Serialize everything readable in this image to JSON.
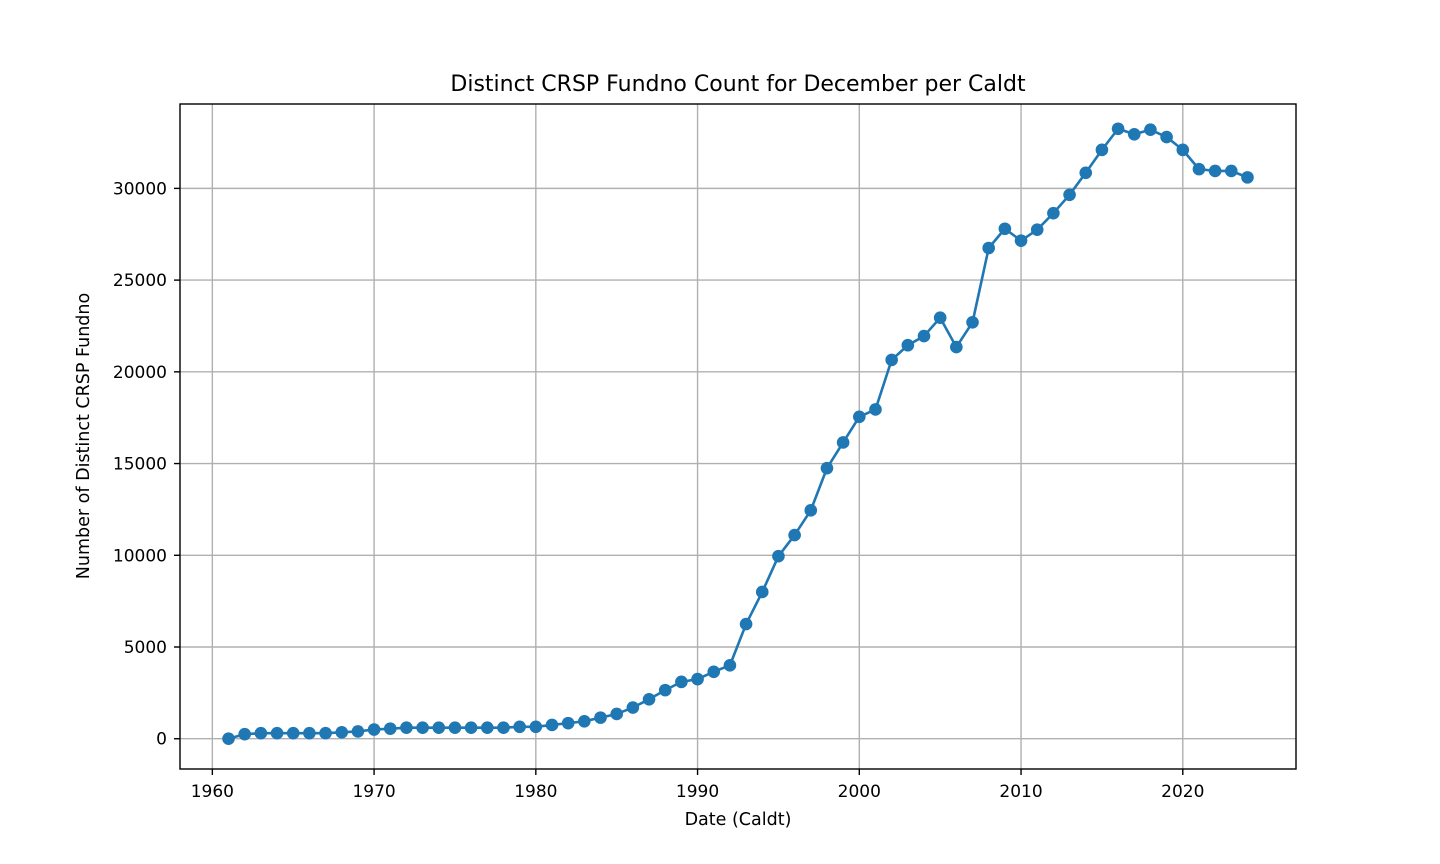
{
  "chart_data": {
    "type": "line",
    "title": "Distinct CRSP Fundno Count for December per Caldt",
    "xlabel": "Date (Caldt)",
    "ylabel": "Number of Distinct CRSP Fundno",
    "xlim": [
      1958,
      2027
    ],
    "ylim": [
      -1650,
      34600
    ],
    "x_ticks": [
      1960,
      1970,
      1980,
      1990,
      2000,
      2010,
      2020
    ],
    "y_ticks": [
      0,
      5000,
      10000,
      15000,
      20000,
      25000,
      30000
    ],
    "grid": true,
    "markers": "circle",
    "series_color": "#1f77b4",
    "series": [
      {
        "x": [
          1961,
          1962,
          1963,
          1964,
          1965,
          1966,
          1967,
          1968,
          1969,
          1970,
          1971,
          1972,
          1973,
          1974,
          1975,
          1976,
          1977,
          1978,
          1979,
          1980,
          1981,
          1982,
          1983,
          1984,
          1985,
          1986,
          1987,
          1988,
          1989,
          1990,
          1991,
          1992,
          1993,
          1994,
          1995,
          1996,
          1997,
          1998,
          1999,
          2000,
          2001,
          2002,
          2003,
          2004,
          2005,
          2006,
          2007,
          2008,
          2009,
          2010,
          2011,
          2012,
          2013,
          2014,
          2015,
          2016,
          2017,
          2018,
          2019,
          2020,
          2021,
          2022,
          2023,
          2024
        ],
        "values": [
          0,
          250,
          300,
          300,
          300,
          300,
          300,
          350,
          400,
          500,
          550,
          600,
          600,
          600,
          600,
          600,
          600,
          600,
          650,
          650,
          750,
          850,
          950,
          1150,
          1350,
          1700,
          2150,
          2650,
          3100,
          3250,
          3650,
          4000,
          6250,
          8000,
          9950,
          11100,
          12450,
          14750,
          16150,
          17550,
          17950,
          20650,
          21450,
          21950,
          22950,
          21350,
          22700,
          26750,
          27800,
          27150,
          27750,
          28650,
          29650,
          30850,
          32100,
          33250,
          32950,
          33200,
          32800,
          32100,
          31050,
          30950,
          30950,
          30600
        ]
      }
    ]
  }
}
